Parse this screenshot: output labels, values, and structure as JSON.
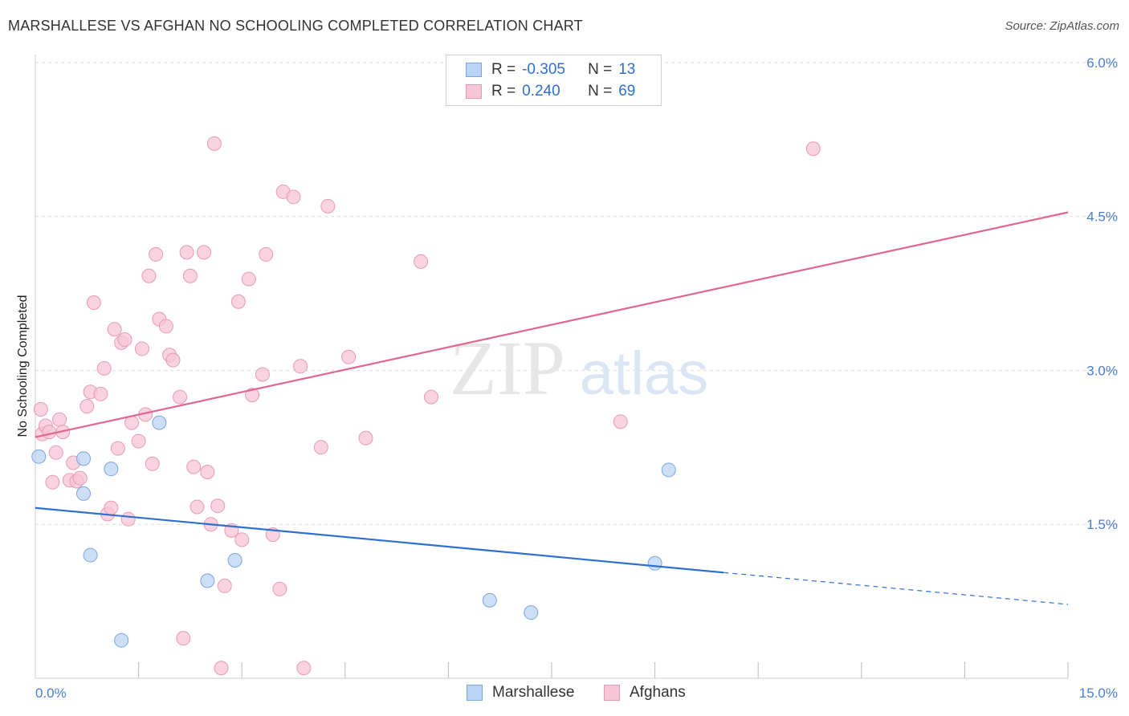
{
  "header": {
    "title": "MARSHALLESE VS AFGHAN NO SCHOOLING COMPLETED CORRELATION CHART",
    "source": "Source: ZipAtlas.com"
  },
  "watermark": {
    "zip": "ZIP",
    "atlas": "atlas"
  },
  "legend": {
    "rows": [
      {
        "r_label": "R =",
        "r_value": "-0.305",
        "n_label": "N =",
        "n_value": "13"
      },
      {
        "r_label": "R =",
        "r_value": "0.240",
        "n_label": "N =",
        "n_value": "69"
      }
    ]
  },
  "bottom_legend": {
    "items": [
      "Marshallese",
      "Afghans"
    ]
  },
  "colors": {
    "marshallese_fill": "#bcd4f3",
    "marshallese_stroke": "#7aa6e0",
    "marshallese_line": "#2f6fd0",
    "afghan_fill": "#f7c6d6",
    "afghan_stroke": "#e89ab4",
    "afghan_line": "#e06690",
    "tick": "#4a7fcf",
    "grid": "#dddddd"
  },
  "chart_data": {
    "type": "scatter",
    "title": "MARSHALLESE VS AFGHAN NO SCHOOLING COMPLETED CORRELATION CHART",
    "xlabel": "",
    "ylabel": "No Schooling Completed",
    "xlim": [
      0,
      15
    ],
    "ylim": [
      0,
      6.3
    ],
    "x_tick_labels": [
      {
        "value": 0,
        "label": "0.0%"
      },
      {
        "value": 15,
        "label": "15.0%"
      }
    ],
    "y_tick_labels": [
      {
        "value": 1.5,
        "label": "1.5%"
      },
      {
        "value": 3.0,
        "label": "3.0%"
      },
      {
        "value": 4.5,
        "label": "4.5%"
      },
      {
        "value": 6.0,
        "label": "6.0%"
      }
    ],
    "x_minor_ticks": [
      1.5,
      3,
      4.5,
      6,
      7.5,
      9,
      10.5,
      12,
      13.5,
      15
    ],
    "gridlines_y": [
      1.5,
      3.0,
      4.5,
      6.0
    ],
    "series": [
      {
        "name": "Marshallese",
        "points": [
          [
            0.05,
            2.16
          ],
          [
            0.7,
            1.8
          ],
          [
            0.7,
            2.14
          ],
          [
            0.8,
            1.2
          ],
          [
            1.1,
            2.04
          ],
          [
            1.25,
            0.37
          ],
          [
            1.8,
            2.49
          ],
          [
            2.5,
            0.95
          ],
          [
            2.9,
            1.15
          ],
          [
            6.6,
            0.76
          ],
          [
            7.2,
            0.64
          ],
          [
            9.0,
            1.12
          ],
          [
            9.2,
            2.03
          ]
        ],
        "trend": {
          "x": [
            0,
            10
          ],
          "y": [
            1.66,
            1.03
          ]
        },
        "trend_extension": {
          "x": [
            10,
            15
          ],
          "y": [
            1.03,
            0.72
          ]
        }
      },
      {
        "name": "Afghans",
        "points": [
          [
            0.08,
            2.62
          ],
          [
            0.1,
            2.38
          ],
          [
            0.15,
            2.46
          ],
          [
            0.2,
            2.4
          ],
          [
            0.25,
            1.91
          ],
          [
            0.3,
            2.2
          ],
          [
            0.35,
            2.52
          ],
          [
            0.4,
            2.4
          ],
          [
            0.5,
            1.93
          ],
          [
            0.55,
            2.1
          ],
          [
            0.6,
            1.92
          ],
          [
            0.65,
            1.95
          ],
          [
            0.75,
            2.65
          ],
          [
            0.8,
            2.79
          ],
          [
            0.85,
            3.66
          ],
          [
            0.95,
            2.77
          ],
          [
            1.0,
            3.02
          ],
          [
            1.05,
            1.6
          ],
          [
            1.1,
            1.66
          ],
          [
            1.15,
            3.4
          ],
          [
            1.2,
            2.24
          ],
          [
            1.25,
            3.27
          ],
          [
            1.3,
            3.3
          ],
          [
            1.35,
            1.55
          ],
          [
            1.4,
            2.49
          ],
          [
            1.5,
            2.31
          ],
          [
            1.55,
            3.21
          ],
          [
            1.6,
            2.57
          ],
          [
            1.65,
            3.92
          ],
          [
            1.7,
            2.09
          ],
          [
            1.75,
            4.13
          ],
          [
            1.8,
            3.5
          ],
          [
            1.9,
            3.43
          ],
          [
            1.95,
            3.15
          ],
          [
            2.0,
            3.1
          ],
          [
            2.1,
            2.74
          ],
          [
            2.15,
            0.39
          ],
          [
            2.2,
            4.15
          ],
          [
            2.25,
            3.92
          ],
          [
            2.3,
            2.06
          ],
          [
            2.35,
            1.67
          ],
          [
            2.45,
            4.15
          ],
          [
            2.5,
            2.01
          ],
          [
            2.55,
            1.5
          ],
          [
            2.6,
            5.21
          ],
          [
            2.65,
            1.68
          ],
          [
            2.7,
            0.1
          ],
          [
            2.75,
            0.9
          ],
          [
            2.85,
            1.44
          ],
          [
            2.95,
            3.67
          ],
          [
            3.0,
            1.35
          ],
          [
            3.1,
            3.89
          ],
          [
            3.15,
            2.76
          ],
          [
            3.3,
            2.96
          ],
          [
            3.35,
            4.13
          ],
          [
            3.45,
            1.4
          ],
          [
            3.55,
            0.87
          ],
          [
            3.6,
            4.74
          ],
          [
            3.75,
            4.69
          ],
          [
            3.85,
            3.04
          ],
          [
            3.9,
            0.1
          ],
          [
            4.15,
            2.25
          ],
          [
            4.25,
            4.6
          ],
          [
            4.55,
            3.13
          ],
          [
            4.8,
            2.34
          ],
          [
            5.6,
            4.06
          ],
          [
            5.75,
            2.74
          ],
          [
            8.5,
            2.5
          ],
          [
            11.3,
            5.16
          ]
        ],
        "trend": {
          "x": [
            0,
            15
          ],
          "y": [
            2.35,
            4.54
          ]
        }
      }
    ]
  }
}
